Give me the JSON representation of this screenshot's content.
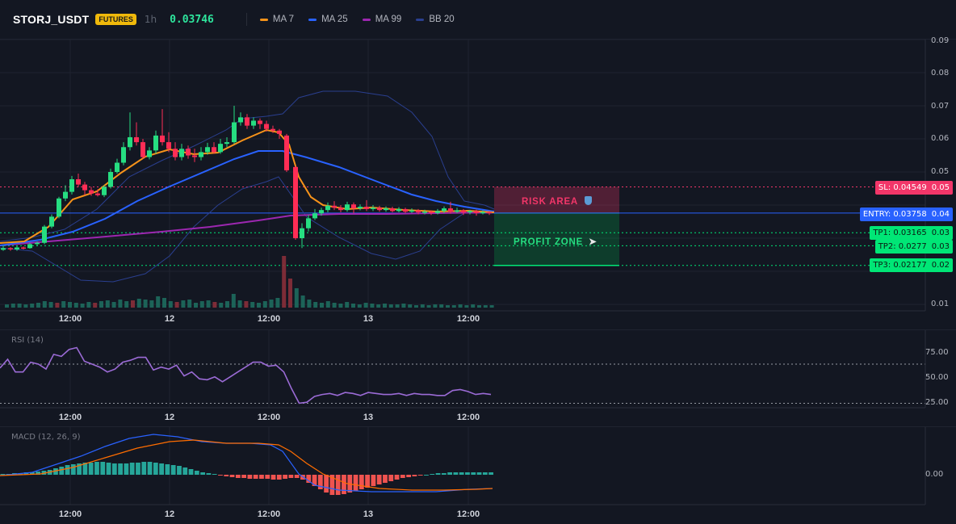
{
  "header": {
    "symbol": "STORJ_USDT",
    "badge": "FUTURES",
    "timeframe": "1h",
    "price": "0.03746",
    "indicators": [
      {
        "label": "MA 7",
        "color": "#f7931a"
      },
      {
        "label": "MA 25",
        "color": "#2962ff"
      },
      {
        "label": "MA 99",
        "color": "#9c27b0"
      },
      {
        "label": "BB 20",
        "color": "#1e3a8a"
      }
    ]
  },
  "main": {
    "y_axis_labels": [
      "0.09",
      "0.08",
      "0.07",
      "0.06",
      "0.05",
      "0.04",
      "0.03",
      "0.02",
      "0.01"
    ],
    "x_axis_labels": [
      "12:00",
      "12",
      "12:00",
      "13",
      "12:00"
    ],
    "zones": {
      "risk_label": "RISK AREA",
      "profit_label": "PROFIT ZONE",
      "risk_icon": "shield-icon",
      "profit_icon": "rocket-icon"
    },
    "levels": [
      {
        "key": "sl",
        "text": "SL: 0.04549",
        "axis": "0.05",
        "value": 0.04549,
        "color": "#f23669",
        "text_color": "#ffffff"
      },
      {
        "key": "entry",
        "text": "ENTRY: 0.03758",
        "axis": "0.04",
        "value": 0.03758,
        "color": "#2962ff",
        "text_color": "#ffffff"
      },
      {
        "key": "tp1",
        "text": "TP1: 0.03165",
        "axis": "0.03",
        "value": 0.03165,
        "color": "#00e676",
        "text_color": "#0b1a12"
      },
      {
        "key": "tp2",
        "text": "TP2: 0.0277",
        "axis": "0.03",
        "value": 0.0277,
        "color": "#00e676",
        "text_color": "#0b1a12"
      },
      {
        "key": "tp3",
        "text": "TP3: 0.02177",
        "axis": "0.02",
        "value": 0.02177,
        "color": "#00e676",
        "text_color": "#0b1a12"
      }
    ]
  },
  "rsi": {
    "title": "RSI (14)",
    "y_axis_labels": [
      "75.00",
      "50.00",
      "25.00"
    ],
    "x_axis_labels": [
      "12:00",
      "12",
      "12:00",
      "13",
      "12:00"
    ],
    "values": [
      66,
      75,
      62,
      62,
      72,
      70,
      65,
      80,
      78,
      85,
      87,
      73,
      70,
      67,
      62,
      65,
      72,
      74,
      77,
      77,
      64,
      67,
      65,
      69,
      58,
      62,
      55,
      54,
      57,
      52,
      57,
      62,
      67,
      72,
      72,
      68,
      69,
      62,
      45,
      30,
      31,
      37,
      39,
      40,
      38,
      41,
      40,
      38,
      41,
      40,
      39,
      39,
      40,
      38,
      40,
      39,
      39,
      38,
      38,
      43,
      44,
      42,
      39,
      40,
      39
    ]
  },
  "macd": {
    "title": "MACD (12, 26, 9)"
  },
  "colors": {
    "up": "#26de81",
    "down": "#ff2d55",
    "bg": "#131722",
    "grid": "#1f2330"
  }
}
